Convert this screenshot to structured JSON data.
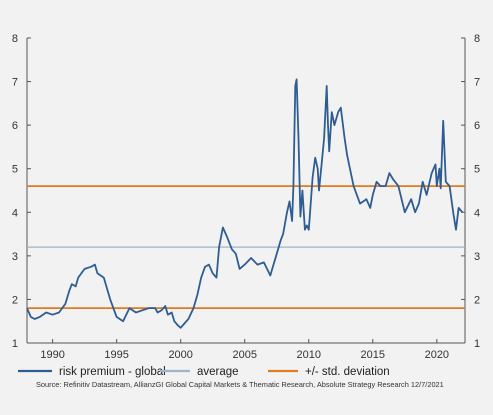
{
  "chart_data": {
    "type": "line",
    "title": "",
    "xlabel": "",
    "ylabel": "",
    "xlim": [
      1988.0,
      2022.2
    ],
    "ylim": [
      1,
      8
    ],
    "x_ticks": [
      1990,
      1995,
      2000,
      2005,
      2010,
      2015,
      2020
    ],
    "y_ticks": [
      1,
      2,
      3,
      4,
      5,
      6,
      7,
      8
    ],
    "grid": false,
    "legend_position": "bottom",
    "series": [
      {
        "name": "risk premium - global",
        "color": "#2f5d93",
        "x": [
          1988.0,
          1988.3,
          1988.6,
          1989.0,
          1989.5,
          1990.0,
          1990.5,
          1991.0,
          1991.3,
          1991.5,
          1991.8,
          1992.0,
          1992.5,
          1993.0,
          1993.3,
          1993.5,
          1994.0,
          1994.5,
          1995.0,
          1995.5,
          1996.0,
          1996.5,
          1997.0,
          1997.5,
          1998.0,
          1998.2,
          1998.5,
          1998.8,
          1999.0,
          1999.3,
          1999.5,
          1999.8,
          2000.0,
          2000.3,
          2000.6,
          2001.0,
          2001.3,
          2001.6,
          2001.9,
          2002.2,
          2002.5,
          2002.8,
          2003.0,
          2003.3,
          2003.6,
          2004.0,
          2004.3,
          2004.6,
          2005.0,
          2005.5,
          2006.0,
          2006.5,
          2007.0,
          2007.4,
          2007.8,
          2008.0,
          2008.3,
          2008.5,
          2008.7,
          2008.8,
          2008.95,
          2009.05,
          2009.2,
          2009.35,
          2009.5,
          2009.7,
          2009.85,
          2010.0,
          2010.3,
          2010.5,
          2010.7,
          2010.8,
          2011.0,
          2011.2,
          2011.4,
          2011.5,
          2011.6,
          2011.8,
          2012.0,
          2012.3,
          2012.5,
          2012.8,
          2013.0,
          2013.5,
          2014.0,
          2014.5,
          2014.8,
          2015.0,
          2015.3,
          2015.6,
          2016.0,
          2016.3,
          2016.6,
          2017.0,
          2017.5,
          2018.0,
          2018.3,
          2018.6,
          2018.9,
          2019.2,
          2019.6,
          2019.9,
          2020.0,
          2020.1,
          2020.2,
          2020.3,
          2020.5,
          2020.7,
          2021.0,
          2021.3,
          2021.5,
          2021.7,
          2022.0
        ],
        "y": [
          1.8,
          1.6,
          1.55,
          1.6,
          1.7,
          1.65,
          1.7,
          1.9,
          2.2,
          2.35,
          2.3,
          2.5,
          2.7,
          2.75,
          2.8,
          2.6,
          2.5,
          2.0,
          1.6,
          1.5,
          1.8,
          1.7,
          1.75,
          1.8,
          1.8,
          1.7,
          1.75,
          1.85,
          1.65,
          1.7,
          1.5,
          1.4,
          1.35,
          1.45,
          1.55,
          1.8,
          2.1,
          2.5,
          2.75,
          2.8,
          2.6,
          2.5,
          3.2,
          3.65,
          3.45,
          3.15,
          3.05,
          2.7,
          2.8,
          2.95,
          2.8,
          2.85,
          2.55,
          2.95,
          3.35,
          3.5,
          4.0,
          4.25,
          3.8,
          4.6,
          6.9,
          7.05,
          5.7,
          3.9,
          4.5,
          3.6,
          3.7,
          3.6,
          4.8,
          5.25,
          5.0,
          4.5,
          5.1,
          5.7,
          6.9,
          6.0,
          5.4,
          6.3,
          6.0,
          6.3,
          6.4,
          5.7,
          5.3,
          4.6,
          4.2,
          4.3,
          4.1,
          4.4,
          4.7,
          4.6,
          4.6,
          4.9,
          4.75,
          4.6,
          4.0,
          4.3,
          4.0,
          4.2,
          4.7,
          4.4,
          4.9,
          5.1,
          4.6,
          4.8,
          5.0,
          4.55,
          6.1,
          4.7,
          4.6,
          3.95,
          3.6,
          4.1,
          4.0
        ]
      },
      {
        "name": "average",
        "color": "#9ab6cc",
        "x": [
          1988.0,
          2022.2
        ],
        "y": [
          3.2,
          3.2
        ]
      },
      {
        "name": "+/- std. deviation",
        "color": "#e07b22",
        "x": [
          1988.0,
          2022.2
        ],
        "y": [
          4.6,
          4.6
        ]
      },
      {
        "name": "",
        "color": "#e07b22",
        "x": [
          1988.0,
          2022.2
        ],
        "y": [
          1.8,
          1.8
        ]
      }
    ],
    "source": "Source: Refinitiv Datastream, AllianzGI Global Capital Markets & Thematic Research, Absolute Strategy Research 12/7/2021"
  }
}
